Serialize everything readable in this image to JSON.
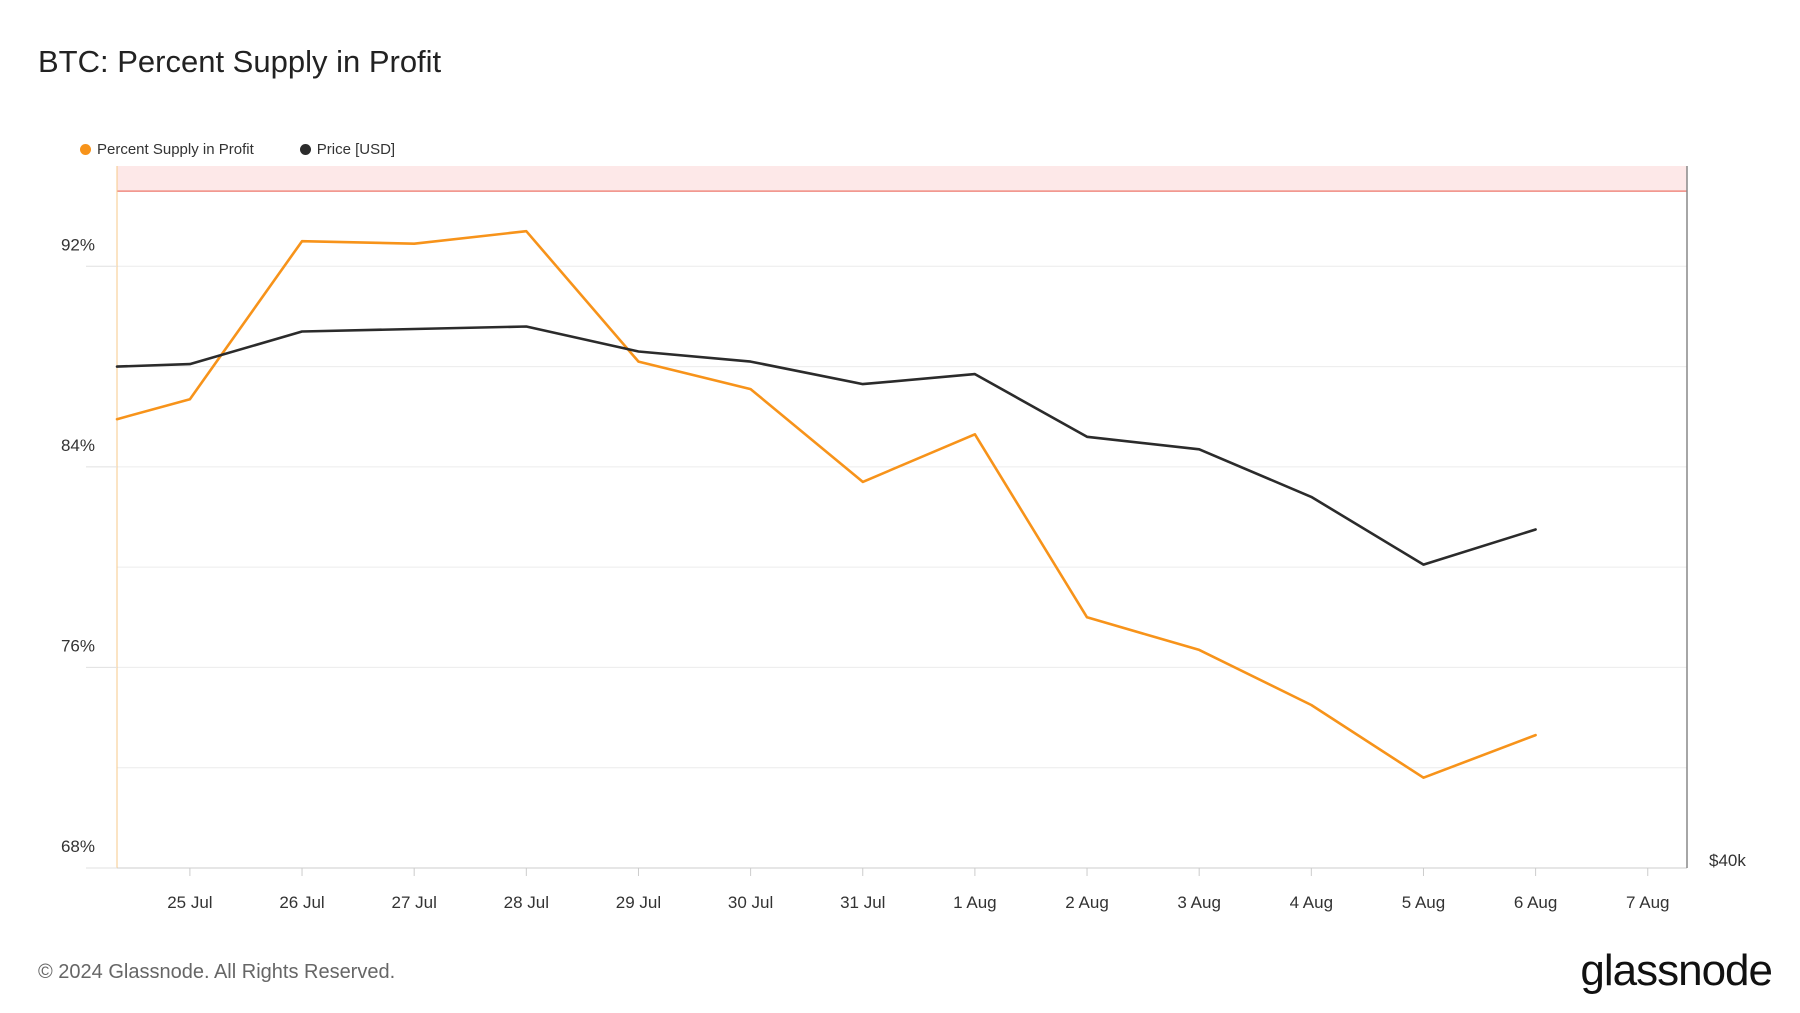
{
  "page": {
    "footer": "© 2024 Glassnode. All Rights Reserved.",
    "brand": "glassnode"
  },
  "colors": {
    "supply": "#f7931a",
    "price": "#2b2b2b",
    "threshold_band": "#fde8e8",
    "threshold_line": "#f08a80",
    "grid": "#ececec",
    "axis": "#888888"
  },
  "legend": [
    {
      "label": "Percent Supply in Profit",
      "color": "#f7931a"
    },
    {
      "label": "Price [USD]",
      "color": "#2b2b2b"
    }
  ],
  "chart_data": {
    "type": "line",
    "title": "BTC: Percent Supply in Profit",
    "x_tick_labels": [
      "25 Jul",
      "26 Jul",
      "27 Jul",
      "28 Jul",
      "29 Jul",
      "30 Jul",
      "31 Jul",
      "1 Aug",
      "2 Aug",
      "3 Aug",
      "4 Aug",
      "5 Aug",
      "6 Aug",
      "7 Aug"
    ],
    "y_left": {
      "ticks": [
        68,
        76,
        84,
        92
      ],
      "tick_labels": [
        "68%",
        "76%",
        "84%",
        "92%"
      ],
      "range": [
        68,
        96
      ]
    },
    "y_right": {
      "label_shown": "$40k",
      "value_at_bottom": 40000
    },
    "threshold": {
      "value": 95,
      "description_band": "above threshold shaded"
    },
    "x_domain": [
      -0.65,
      13.35
    ],
    "series": [
      {
        "name": "Percent Supply in Profit",
        "axis": "left",
        "color": "#f7931a",
        "x": [
          -0.65,
          0,
          1,
          2,
          3,
          4,
          5,
          6,
          7,
          8,
          9,
          10,
          11,
          12
        ],
        "values": [
          85.9,
          86.7,
          93.0,
          92.9,
          93.4,
          88.2,
          87.1,
          83.4,
          85.3,
          78.0,
          76.7,
          74.5,
          71.6,
          73.3
        ]
      },
      {
        "name": "Price [USD]",
        "axis": "left_scaled",
        "color": "#2b2b2b",
        "x": [
          -0.65,
          0,
          1,
          2,
          3,
          4,
          5,
          6,
          7,
          8,
          9,
          10,
          11,
          12
        ],
        "values": [
          88.0,
          88.1,
          89.4,
          89.5,
          89.6,
          88.6,
          88.2,
          87.3,
          87.7,
          85.2,
          84.7,
          82.8,
          80.1,
          81.5
        ]
      }
    ],
    "grid": true,
    "legend_position": "top-left"
  }
}
